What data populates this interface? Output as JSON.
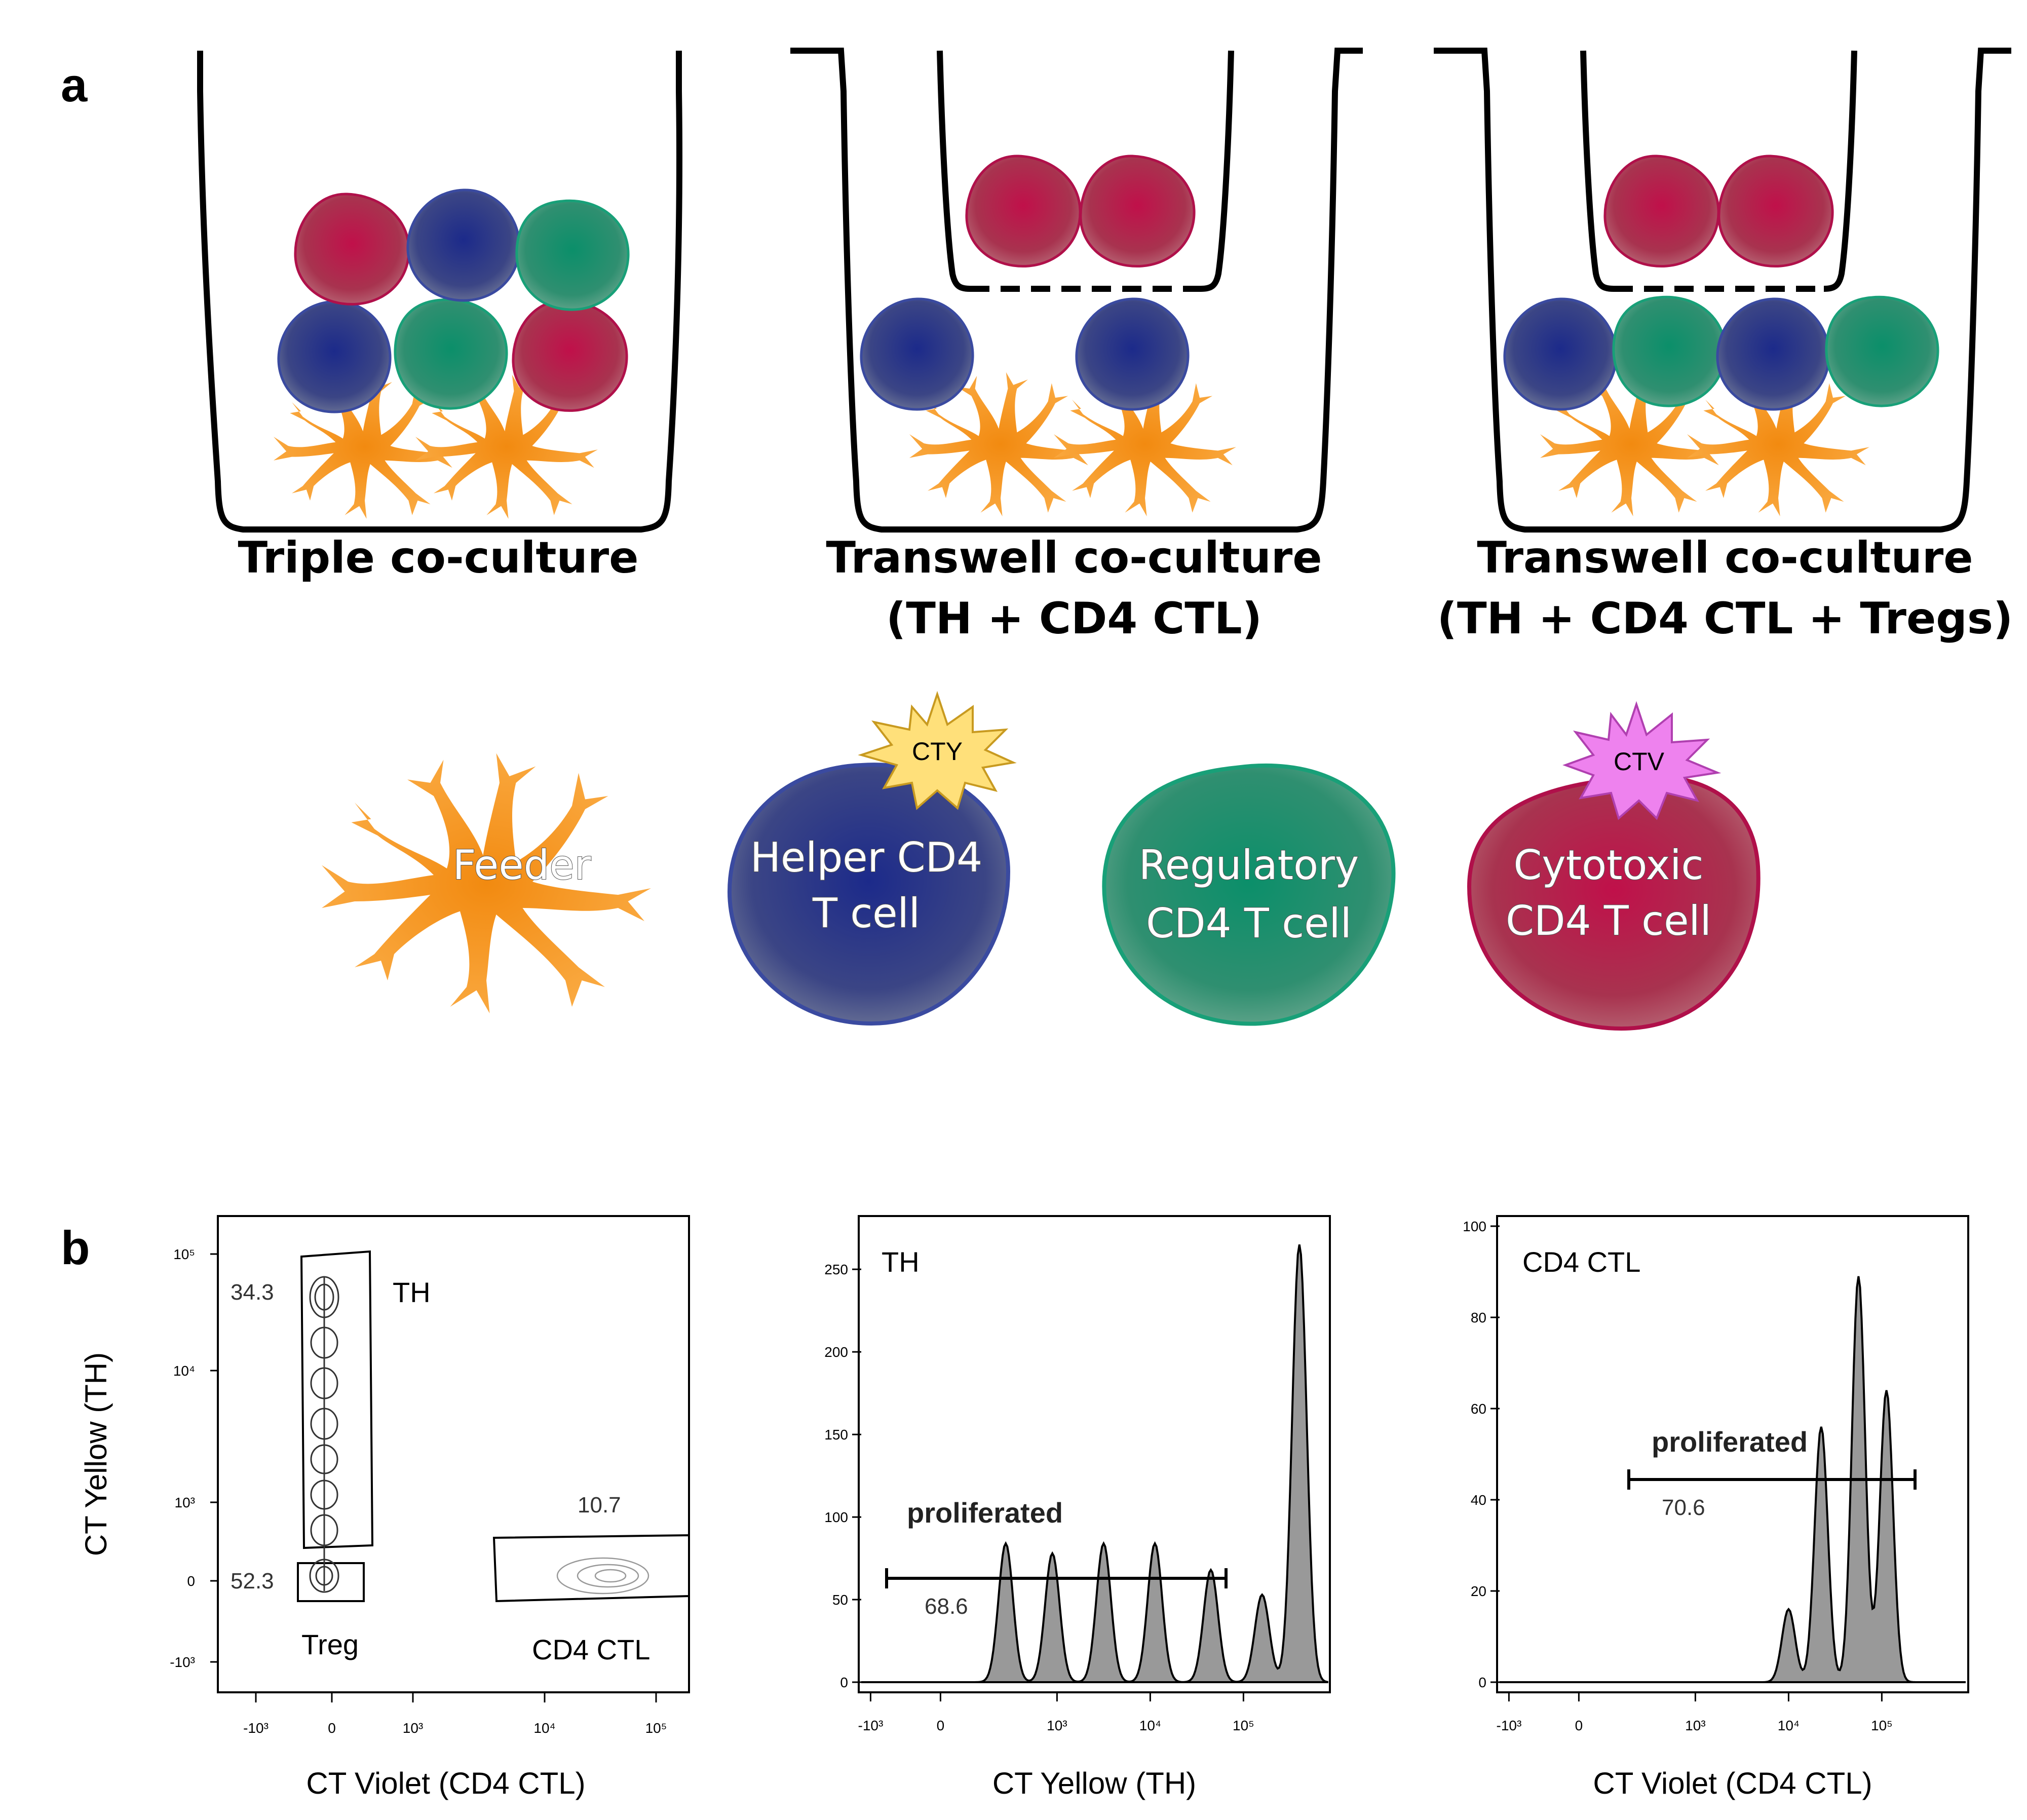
{
  "panel_a": {
    "letter": "a",
    "captions": {
      "triple": "Triple co-culture",
      "transwell1_line1": "Transwell co-culture",
      "transwell1_line2": "(TH + CD4 CTL)",
      "transwell2_line1": "Transwell co-culture",
      "transwell2_line2": "(TH + CD4 CTL + Tregs)"
    },
    "legend": {
      "feeder": "Feeder",
      "helper_line1": "Helper CD4",
      "helper_line2": "T cell",
      "helper_badge": "CTY",
      "regulatory_line1": "Regulatory",
      "regulatory_line2": "CD4 T cell",
      "cytotoxic_line1": "Cytotoxic",
      "cytotoxic_line2": "CD4 T cell",
      "cytotoxic_badge": "CTV"
    },
    "colors": {
      "feeder": "#f7a030",
      "helper": "#2e3b86",
      "regulatory": "#0f8f6a",
      "cytotoxic": "#b5123f",
      "cty_badge": "#ffe07a",
      "ctv_badge": "#ee82ee"
    }
  },
  "panel_b": {
    "letter": "b",
    "plot1": {
      "xlabel": "CT Violet (CD4 CTL)",
      "ylabel": "CT Yellow (TH)",
      "xticks": [
        "-10³",
        "0",
        "10³",
        "10⁴",
        "10⁵"
      ],
      "yticks": [
        "10⁵",
        "10⁴",
        "10³",
        "0",
        "-10³"
      ],
      "gates": {
        "th_pct": "34.3",
        "th_name": "TH",
        "treg_pct": "52.3",
        "treg_name": "Treg",
        "ctl_pct": "10.7",
        "ctl_name": "CD4 CTL"
      }
    },
    "plot2": {
      "xlabel": "CT Yellow (TH)",
      "label": "TH",
      "xticks": [
        "-10³",
        "0",
        "10³",
        "10⁴",
        "10⁵"
      ],
      "yticks": [
        "250",
        "200",
        "150",
        "100",
        "50",
        "0"
      ],
      "gate_label": "proliferated",
      "gate_pct": "68.6"
    },
    "plot3": {
      "xlabel": "CT Violet (CD4 CTL)",
      "label": "CD4 CTL",
      "xticks": [
        "-10³",
        "0",
        "10³",
        "10⁴",
        "10⁵"
      ],
      "yticks": [
        "100",
        "80",
        "60",
        "40",
        "20",
        "0"
      ],
      "gate_label": "proliferated",
      "gate_pct": "70.6"
    }
  },
  "chart_data": [
    {
      "type": "area",
      "title": "",
      "xlabel": "CT Yellow (TH)",
      "ylabel": "",
      "series": [
        {
          "name": "TH",
          "peaks_x_decades": [
            0.45,
            0.95,
            1.5,
            2.05,
            2.65,
            3.2,
            3.6
          ],
          "peaks_y": [
            84,
            78,
            84,
            84,
            68,
            53,
            265
          ]
        }
      ],
      "ylim": [
        0,
        270
      ],
      "annotation": {
        "label": "proliferated",
        "value": "68.6"
      }
    },
    {
      "type": "area",
      "title": "",
      "xlabel": "CT Violet (CD4 CTL)",
      "ylabel": "",
      "series": [
        {
          "name": "CD4 CTL",
          "peaks_x_decades": [
            2.0,
            2.35,
            2.75,
            3.05
          ],
          "peaks_y": [
            16,
            56,
            89,
            64
          ]
        }
      ],
      "ylim": [
        0,
        100
      ],
      "annotation": {
        "label": "proliferated",
        "value": "70.6"
      }
    }
  ]
}
